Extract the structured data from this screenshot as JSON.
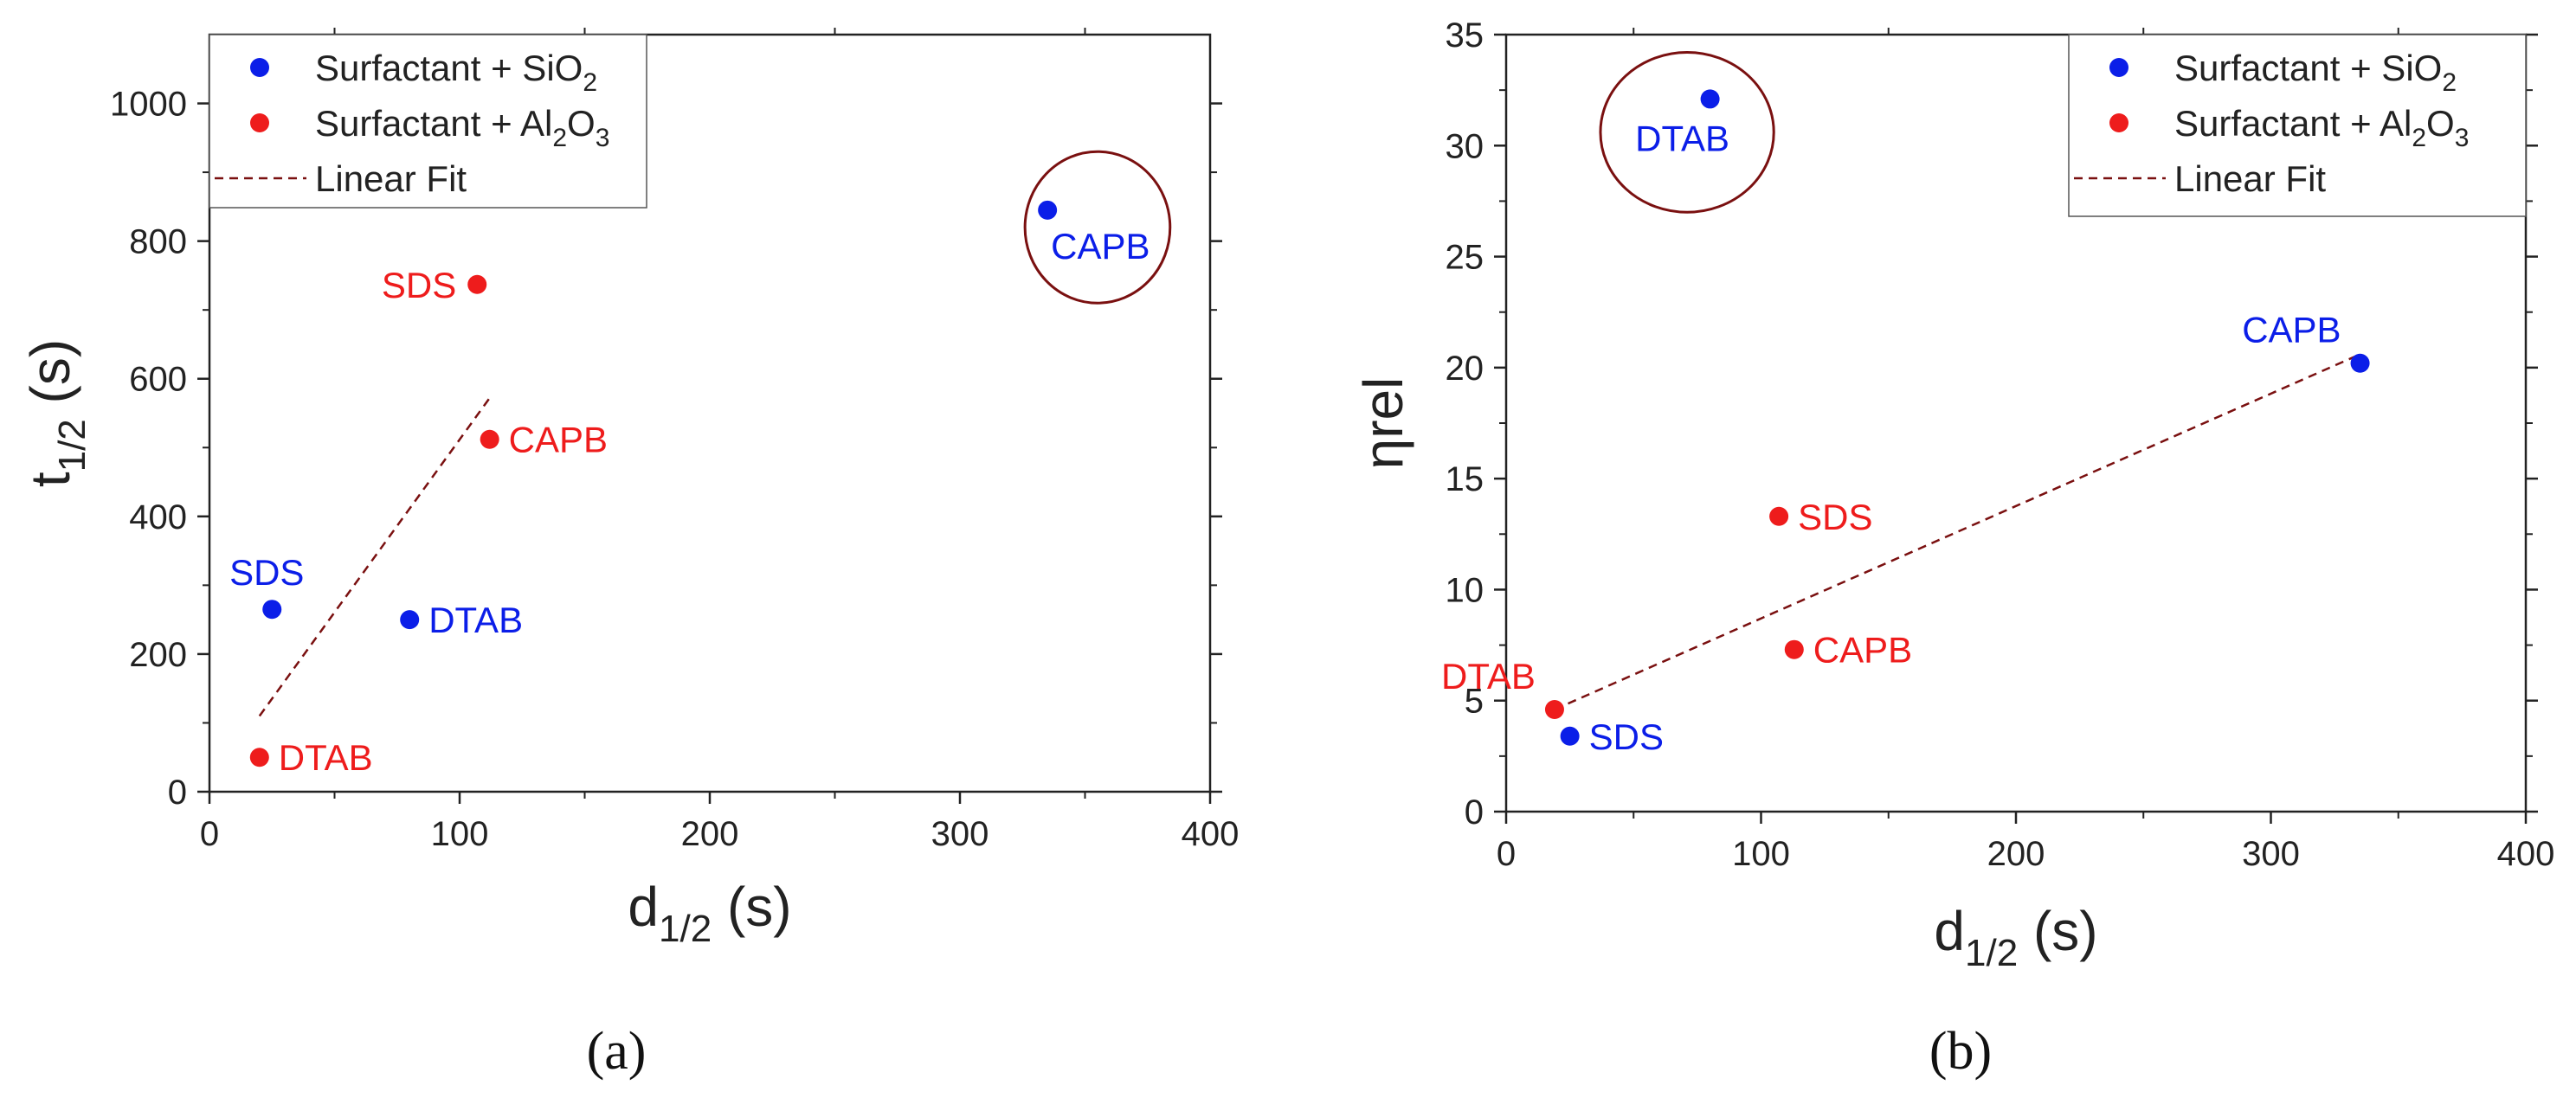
{
  "colors": {
    "blue": "#0b1ee8",
    "red": "#ee1c1c",
    "fit": "#7a1010",
    "circle": "#7a1010",
    "axis": "#222222"
  },
  "chart_data": [
    {
      "type": "scatter",
      "panel_label": "(a)",
      "xlabel": {
        "main": "d",
        "sub": "1/2",
        "rest": " (s)"
      },
      "ylabel": {
        "main": "t",
        "sub": "1/2",
        "rest": " (s)"
      },
      "xlim": [
        0,
        400
      ],
      "ylim": [
        0,
        1100
      ],
      "xticks": [
        "0",
        "100",
        "200",
        "300",
        "400"
      ],
      "yticks": [
        "0",
        "200",
        "400",
        "600",
        "800",
        "1000"
      ],
      "legend": {
        "position": "top-left",
        "entries": [
          {
            "kind": "dot",
            "color": "blue",
            "text": "Surfactant + SiO",
            "sub": "2",
            "tail": ""
          },
          {
            "kind": "dot",
            "color": "red",
            "text": "Surfactant + Al",
            "sub": "2",
            "tail": "O",
            "sub2": "3"
          },
          {
            "kind": "dash",
            "color": "fit",
            "text": "Linear Fit"
          }
        ]
      },
      "series": [
        {
          "name": "Surfactant + SiO2",
          "color": "blue",
          "points": [
            {
              "label": "SDS",
              "x": 25,
              "y": 265,
              "anchor": "above"
            },
            {
              "label": "DTAB",
              "x": 80,
              "y": 250,
              "anchor": "right"
            },
            {
              "label": "CAPB",
              "x": 335,
              "y": 845,
              "anchor": "below-right"
            }
          ]
        },
        {
          "name": "Surfactant + Al2O3",
          "color": "red",
          "points": [
            {
              "label": "SDS",
              "x": 107,
              "y": 737,
              "anchor": "left"
            },
            {
              "label": "CAPB",
              "x": 112,
              "y": 512,
              "anchor": "right"
            },
            {
              "label": "DTAB",
              "x": 20,
              "y": 50,
              "anchor": "right"
            }
          ]
        }
      ],
      "fit": {
        "x": [
          20,
          112
        ],
        "y": [
          110,
          572
        ]
      },
      "highlight": {
        "x": 355,
        "y": 820,
        "rx_units": 29,
        "ry_units": 110
      }
    },
    {
      "type": "scatter",
      "panel_label": "(b)",
      "xlabel": {
        "main": "d",
        "sub": "1/2",
        "rest": " (s)"
      },
      "ylabel": {
        "main": "η",
        "sub": "",
        "rest": "rel"
      },
      "xlim": [
        0,
        400
      ],
      "ylim": [
        0,
        35
      ],
      "xticks": [
        "0",
        "100",
        "200",
        "300",
        "400"
      ],
      "yticks": [
        "0",
        "5",
        "10",
        "15",
        "20",
        "25",
        "30",
        "35"
      ],
      "legend": {
        "position": "top-right",
        "entries": [
          {
            "kind": "dot",
            "color": "blue",
            "text": "Surfactant + SiO",
            "sub": "2",
            "tail": ""
          },
          {
            "kind": "dot",
            "color": "red",
            "text": "Surfactant + Al",
            "sub": "2",
            "tail": "O",
            "sub2": "3"
          },
          {
            "kind": "dash",
            "color": "fit",
            "text": "Linear Fit"
          }
        ]
      },
      "series": [
        {
          "name": "Surfactant + SiO2",
          "color": "blue",
          "points": [
            {
              "label": "DTAB",
              "x": 80,
              "y": 32.1,
              "anchor": "below"
            },
            {
              "label": "CAPB",
              "x": 335,
              "y": 20.2,
              "anchor": "above-left"
            },
            {
              "label": "SDS",
              "x": 25,
              "y": 3.4,
              "anchor": "right"
            }
          ]
        },
        {
          "name": "Surfactant + Al2O3",
          "color": "red",
          "points": [
            {
              "label": "SDS",
              "x": 107,
              "y": 13.3,
              "anchor": "right"
            },
            {
              "label": "CAPB",
              "x": 113,
              "y": 7.3,
              "anchor": "right"
            },
            {
              "label": "DTAB",
              "x": 19,
              "y": 4.6,
              "anchor": "above-left"
            }
          ]
        }
      ],
      "fit": {
        "x": [
          19,
          335
        ],
        "y": [
          4.6,
          20.6
        ]
      },
      "highlight": {
        "x": 71,
        "y": 30.6,
        "rx_units": 34,
        "ry_units": 3.6
      }
    }
  ]
}
